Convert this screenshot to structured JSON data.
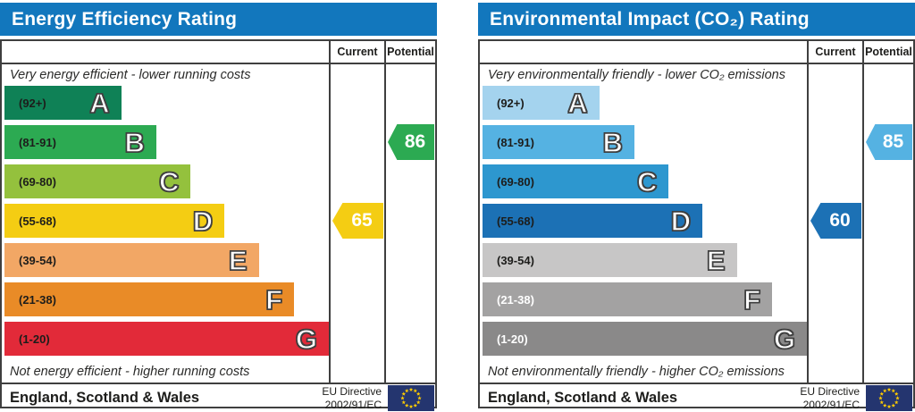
{
  "styles": {
    "header_bg": "#1277bd",
    "table_border": "#3f3f3f",
    "flag_bg": "#24356f",
    "flag_star": "#ffcc00"
  },
  "chart_data": [
    {
      "type": "bar",
      "title": "Energy Efficiency Rating",
      "columns": {
        "current": "Current",
        "potential": "Potential"
      },
      "top_caption": "Very energy efficient - lower running costs",
      "bottom_caption": "Not energy efficient - higher running costs",
      "bands": [
        {
          "letter": "A",
          "range_label": "(92+)",
          "min": 92,
          "max": 100,
          "color": "#0f8156",
          "width_pct": 36.0,
          "text_color": "#1d1d1b"
        },
        {
          "letter": "B",
          "range_label": "(81-91)",
          "min": 81,
          "max": 91,
          "color": "#2caa52",
          "width_pct": 46.8,
          "text_color": "#1d1d1b"
        },
        {
          "letter": "C",
          "range_label": "(69-80)",
          "min": 69,
          "max": 80,
          "color": "#94c13d",
          "width_pct": 57.4,
          "text_color": "#1d1d1b"
        },
        {
          "letter": "D",
          "range_label": "(55-68)",
          "min": 55,
          "max": 68,
          "color": "#f4cd13",
          "width_pct": 67.8,
          "text_color": "#1d1d1b"
        },
        {
          "letter": "E",
          "range_label": "(39-54)",
          "min": 39,
          "max": 54,
          "color": "#f2a765",
          "width_pct": 78.4,
          "text_color": "#1d1d1b"
        },
        {
          "letter": "F",
          "range_label": "(21-38)",
          "min": 21,
          "max": 38,
          "color": "#e98b27",
          "width_pct": 89.3,
          "text_color": "#1d1d1b"
        },
        {
          "letter": "G",
          "range_label": "(1-20)",
          "min": 1,
          "max": 20,
          "color": "#e22a39",
          "width_pct": 100.0,
          "text_color": "#1d1d1b"
        }
      ],
      "current": {
        "value": 65,
        "band": "D",
        "band_index": 3,
        "color": "#f4cd13"
      },
      "potential": {
        "value": 86,
        "band": "B",
        "band_index": 1,
        "color": "#2caa52"
      },
      "footer_region": "England, Scotland & Wales",
      "footer_directive": [
        "EU Directive",
        "2002/91/EC"
      ]
    },
    {
      "type": "bar",
      "title": "Environmental Impact (CO₂) Rating",
      "columns": {
        "current": "Current",
        "potential": "Potential"
      },
      "top_caption": "Very environmentally friendly - lower CO₂ emissions",
      "bottom_caption": "Not environmentally friendly - higher CO₂ emissions",
      "bands": [
        {
          "letter": "A",
          "range_label": "(92+)",
          "min": 92,
          "max": 100,
          "color": "#a4d3ee",
          "width_pct": 36.0,
          "text_color": "#1d1d1b"
        },
        {
          "letter": "B",
          "range_label": "(81-91)",
          "min": 81,
          "max": 91,
          "color": "#55b2e2",
          "width_pct": 46.8,
          "text_color": "#1d1d1b"
        },
        {
          "letter": "C",
          "range_label": "(69-80)",
          "min": 69,
          "max": 80,
          "color": "#2d97cf",
          "width_pct": 57.4,
          "text_color": "#1d1d1b"
        },
        {
          "letter": "D",
          "range_label": "(55-68)",
          "min": 55,
          "max": 68,
          "color": "#1c71b5",
          "width_pct": 67.8,
          "text_color": "#1d1d1b"
        },
        {
          "letter": "E",
          "range_label": "(39-54)",
          "min": 39,
          "max": 54,
          "color": "#c7c6c6",
          "width_pct": 78.4,
          "text_color": "#1d1d1b"
        },
        {
          "letter": "F",
          "range_label": "(21-38)",
          "min": 21,
          "max": 38,
          "color": "#a3a2a2",
          "width_pct": 89.3,
          "text_color": "#ffffff"
        },
        {
          "letter": "G",
          "range_label": "(1-20)",
          "min": 1,
          "max": 20,
          "color": "#8a8989",
          "width_pct": 100.0,
          "text_color": "#ffffff"
        }
      ],
      "current": {
        "value": 60,
        "band": "D",
        "band_index": 3,
        "color": "#1c71b5"
      },
      "potential": {
        "value": 85,
        "band": "B",
        "band_index": 1,
        "color": "#55b2e2"
      },
      "footer_region": "England, Scotland & Wales",
      "footer_directive": [
        "EU Directive",
        "2002/91/EC"
      ]
    }
  ]
}
